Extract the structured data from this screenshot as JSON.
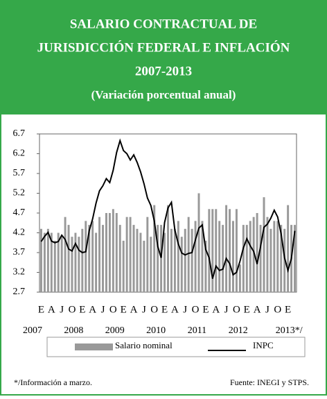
{
  "chart_data": {
    "type": "bar-line",
    "title": [
      "SALARIO CONTRACTUAL DE",
      "JURISDICCIÓN FEDERAL E INFLACIÓN",
      "2007-2013"
    ],
    "subtitle": "(Variación porcentual anual)",
    "categories": [
      "E",
      null,
      null,
      "A",
      null,
      null,
      "J",
      null,
      null,
      "O",
      null,
      null,
      "E",
      null,
      null,
      "A",
      null,
      null,
      "J",
      null,
      null,
      "O",
      null,
      null,
      "E",
      null,
      null,
      "A",
      null,
      null,
      "J",
      null,
      null,
      "O",
      null,
      null,
      "E",
      null,
      null,
      "A",
      null,
      null,
      "J",
      null,
      null,
      "O",
      null,
      null,
      "E",
      null,
      null,
      "A",
      null,
      null,
      "J",
      null,
      null,
      "O",
      null,
      null,
      "E",
      null,
      null,
      "A",
      null,
      null,
      "J",
      null,
      null,
      "O",
      null,
      null,
      "E",
      null,
      null
    ],
    "years": [
      "2007",
      "2008",
      "2009",
      "2010",
      "2011",
      "2012",
      "2013*/"
    ],
    "series": [
      {
        "name": "Salario nominal",
        "kind": "bar",
        "color": "#999999",
        "values": [
          4.3,
          4.2,
          4.3,
          4.2,
          4.0,
          4.2,
          4.1,
          4.6,
          4.4,
          4.1,
          4.2,
          4.1,
          4.3,
          4.5,
          4.4,
          4.5,
          4.2,
          4.6,
          4.4,
          4.7,
          4.7,
          4.8,
          4.7,
          4.4,
          4.0,
          4.6,
          4.6,
          4.4,
          4.3,
          4.2,
          4.0,
          4.6,
          4.1,
          4.9,
          4.4,
          4.4,
          4.2,
          4.9,
          4.3,
          4.3,
          4.5,
          4.1,
          4.3,
          4.6,
          4.3,
          4.5,
          5.2,
          4.5,
          4.0,
          4.8,
          4.8,
          4.8,
          4.5,
          4.4,
          4.9,
          4.8,
          4.5,
          4.8,
          3.4,
          4.4,
          4.4,
          4.5,
          4.6,
          4.7,
          4.4,
          5.1,
          4.6,
          4.3,
          4.5,
          4.5,
          4.4,
          4.3,
          4.9,
          4.4,
          4.4
        ]
      },
      {
        "name": "INPC",
        "kind": "line",
        "color": "#000000",
        "values": [
          3.98,
          4.11,
          4.21,
          3.99,
          3.95,
          3.98,
          4.14,
          4.03,
          3.79,
          3.74,
          3.93,
          3.76,
          3.7,
          3.72,
          4.25,
          4.55,
          4.95,
          5.26,
          5.39,
          5.57,
          5.47,
          5.78,
          6.23,
          6.53,
          6.28,
          6.2,
          6.04,
          6.17,
          5.98,
          5.74,
          5.44,
          5.08,
          4.89,
          4.5,
          3.86,
          3.57,
          4.46,
          4.83,
          4.97,
          4.27,
          3.92,
          3.69,
          3.64,
          3.68,
          3.7,
          4.02,
          4.32,
          4.4,
          3.78,
          3.57,
          3.04,
          3.36,
          3.25,
          3.28,
          3.55,
          3.42,
          3.14,
          3.2,
          3.48,
          3.82,
          4.05,
          3.87,
          3.73,
          3.41,
          3.85,
          4.34,
          4.42,
          4.57,
          4.77,
          4.6,
          4.18,
          3.57,
          3.25,
          3.55,
          4.25
        ]
      }
    ],
    "ylim": [
      2.7,
      6.7
    ],
    "yticks": [
      2.7,
      3.2,
      3.7,
      4.2,
      4.7,
      5.2,
      5.7,
      6.2,
      6.7
    ],
    "header_color": "#35a849",
    "note": "*/Información a marzo.",
    "source": "Fuente: INEGI y STPS."
  }
}
